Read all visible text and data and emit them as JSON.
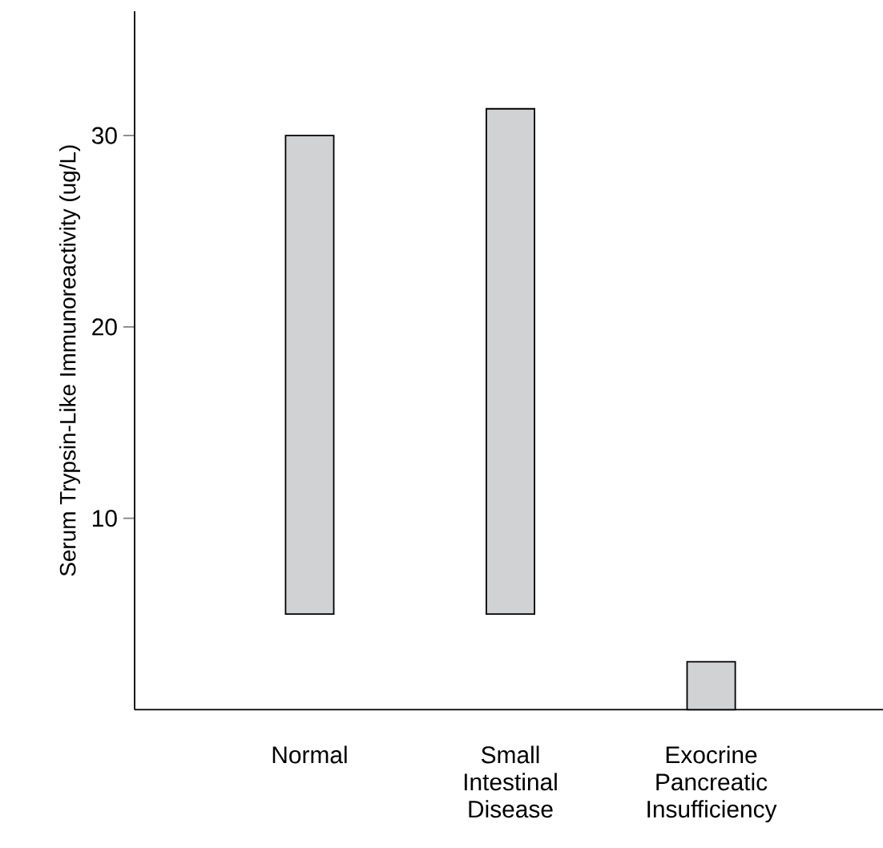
{
  "chart_data": {
    "type": "bar",
    "ylabel": "Serum Trypsin-Like Immunoreactivity (ug/L)",
    "categories": [
      "Normal",
      "Small Intestinal Disease",
      "Exocrine Pancreatic Insufficiency"
    ],
    "base": [
      5,
      5,
      0
    ],
    "values": [
      25,
      26.4,
      2.5
    ],
    "color": "#d1d2d4",
    "ylim": [
      0,
      36.5
    ],
    "yticks": [
      10,
      20,
      30
    ]
  }
}
